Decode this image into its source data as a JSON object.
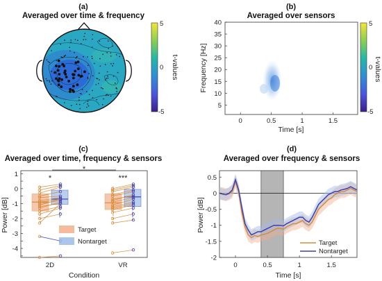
{
  "panels": {
    "a": {
      "letter": "(a)",
      "title": "Averaged over time & frequency",
      "colorbar": {
        "label": "t-values",
        "ticks": [
          "5",
          "0",
          "-5"
        ]
      }
    },
    "b": {
      "letter": "(b)",
      "title": "Averaged over sensors",
      "xlabel": "Time [s]",
      "ylabel": "Frequency [Hz]",
      "xticks": [
        "0",
        "0.5",
        "1",
        "1.5"
      ],
      "yticks": [
        "40",
        "35",
        "30",
        "25",
        "20",
        "15",
        "10",
        "5"
      ],
      "colorbar": {
        "label": "t-values",
        "ticks": [
          "5",
          "0",
          "-5"
        ]
      }
    },
    "c": {
      "letter": "(c)",
      "title": "Averaged over time, frequency & sensors",
      "xlabel": "Condition",
      "ylabel": "Power [dB]",
      "xticks": [
        "2D",
        "VR"
      ],
      "yticks": [
        "1",
        "0.5",
        "0",
        "-0.5",
        "-1",
        "-1.5",
        "-2",
        "-2.5",
        "-3",
        "-3.5",
        "-4",
        "-4.5"
      ],
      "sig": {
        "between": "*",
        "within_2d": "*",
        "within_vr": "***"
      },
      "legend": [
        "Target",
        "Nontarget"
      ]
    },
    "d": {
      "letter": "(d)",
      "title": "Averaged over frequency & sensors",
      "xlabel": "Time [s]",
      "ylabel": "Power [dB]",
      "xticks": [
        "0",
        "0.5",
        "1",
        "1.5"
      ],
      "yticks": [
        "0.5",
        "0",
        "-0.5",
        "-1",
        "-1.5",
        "-2"
      ],
      "legend": [
        "Target",
        "Nontarget"
      ]
    }
  },
  "colors": {
    "target": "#d98b3a",
    "nontarget": "#3a3fb4",
    "target_fill": "#f2b08c",
    "nontarget_fill": "#9dbbe8",
    "highlight": "#b5b5b5"
  },
  "chart_data": [
    {
      "panel": "a",
      "type": "heatmap",
      "title": "Averaged over time & frequency",
      "colorbar_label": "t-values",
      "clim": [
        -5,
        5
      ]
    },
    {
      "panel": "b",
      "type": "heatmap",
      "title": "Averaged over sensors",
      "xlabel": "Time [s]",
      "ylabel": "Frequency [Hz]",
      "xlim": [
        -0.25,
        1.9
      ],
      "ylim": [
        1,
        40
      ],
      "clim": [
        -5,
        5
      ],
      "colorbar_label": "t-values",
      "cluster": {
        "time": [
          0.45,
          0.75
        ],
        "frequency": [
          9,
          26
        ],
        "peak_t": -2.5
      }
    },
    {
      "panel": "c",
      "type": "box",
      "title": "Averaged over time, frequency & sensors",
      "xlabel": "Condition",
      "ylabel": "Power [dB]",
      "categories": [
        "2D",
        "VR"
      ],
      "ylim": [
        -4.6,
        1.2
      ],
      "series": [
        {
          "name": "Target",
          "boxes": [
            {
              "q1": -1.5,
              "median": -0.9,
              "q3": -0.35,
              "low": -2.3,
              "high": 0.15
            },
            {
              "q1": -1.4,
              "median": -0.95,
              "q3": -0.35,
              "low": -2.3,
              "high": 0.15
            }
          ]
        },
        {
          "name": "Nontarget",
          "boxes": [
            {
              "q1": -1.05,
              "median": -0.7,
              "q3": -0.1,
              "low": -2.0,
              "high": 0.3
            },
            {
              "q1": -1.2,
              "median": -0.55,
              "q3": -0.05,
              "low": -2.1,
              "high": 0.3
            }
          ]
        }
      ],
      "pairs_2d": [
        [
          0.1,
          0.3
        ],
        [
          -0.1,
          0.2
        ],
        [
          -0.3,
          0.1
        ],
        [
          -0.5,
          -0.2
        ],
        [
          -0.6,
          -0.5
        ],
        [
          -0.8,
          -0.6
        ],
        [
          -0.9,
          -0.7
        ],
        [
          -1.0,
          -0.8
        ],
        [
          -1.1,
          -0.7
        ],
        [
          -1.2,
          -1.0
        ],
        [
          -1.3,
          -0.9
        ],
        [
          -1.5,
          -1.2
        ],
        [
          -1.7,
          -1.3
        ],
        [
          -2.0,
          -1.7
        ],
        [
          -2.3,
          -1.0
        ],
        [
          -3.2,
          -3.5
        ],
        [
          -4.6,
          -4.5
        ]
      ],
      "pairs_vr": [
        [
          0.0,
          0.3
        ],
        [
          -0.1,
          0.2
        ],
        [
          -0.2,
          0.1
        ],
        [
          -0.4,
          -0.1
        ],
        [
          -0.5,
          -0.2
        ],
        [
          -0.7,
          -0.5
        ],
        [
          -0.8,
          -0.4
        ],
        [
          -0.9,
          -0.6
        ],
        [
          -1.1,
          -0.7
        ],
        [
          -1.2,
          -0.9
        ],
        [
          -1.3,
          -1.0
        ],
        [
          -1.4,
          -1.1
        ],
        [
          -1.6,
          -1.3
        ],
        [
          -2.0,
          -1.7
        ],
        [
          -2.3,
          -2.1
        ],
        [
          -4.3,
          -4.1
        ]
      ]
    },
    {
      "panel": "d",
      "type": "line",
      "title": "Averaged over frequency & sensors",
      "xlabel": "Time [s]",
      "ylabel": "Power [dB]",
      "xlim": [
        -0.25,
        1.9
      ],
      "ylim": [
        -2,
        0.7
      ],
      "highlight": [
        0.4,
        0.75
      ],
      "x": [
        -0.25,
        -0.2,
        -0.15,
        -0.1,
        -0.05,
        0.0,
        0.05,
        0.1,
        0.15,
        0.2,
        0.25,
        0.3,
        0.35,
        0.4,
        0.45,
        0.5,
        0.55,
        0.6,
        0.65,
        0.7,
        0.75,
        0.8,
        0.85,
        0.9,
        0.95,
        1.0,
        1.05,
        1.1,
        1.15,
        1.2,
        1.25,
        1.3,
        1.35,
        1.4,
        1.45,
        1.5,
        1.55,
        1.6,
        1.65,
        1.7,
        1.75,
        1.8,
        1.85,
        1.9
      ],
      "series": [
        {
          "name": "Target",
          "values": [
            0.0,
            -0.02,
            -0.05,
            -0.02,
            0.05,
            0.35,
            0.05,
            -0.6,
            -1.05,
            -1.3,
            -1.38,
            -1.32,
            -1.35,
            -1.3,
            -1.28,
            -1.25,
            -1.2,
            -1.15,
            -1.1,
            -1.1,
            -1.12,
            -1.05,
            -1.0,
            -0.95,
            -0.95,
            -0.9,
            -0.85,
            -0.95,
            -1.0,
            -0.9,
            -0.7,
            -0.5,
            -0.4,
            -0.3,
            -0.2,
            -0.15,
            -0.05,
            0.0,
            0.05,
            0.05,
            0.1,
            0.15,
            0.1,
            0.05
          ],
          "ci": 0.2
        },
        {
          "name": "Nontarget",
          "values": [
            0.0,
            -0.03,
            -0.05,
            0.0,
            0.1,
            0.42,
            0.1,
            -0.45,
            -0.95,
            -1.15,
            -1.3,
            -1.25,
            -1.2,
            -1.2,
            -1.15,
            -1.1,
            -1.05,
            -1.0,
            -1.0,
            -1.0,
            -1.02,
            -0.95,
            -0.9,
            -0.85,
            -0.8,
            -0.75,
            -0.75,
            -0.85,
            -0.9,
            -0.75,
            -0.55,
            -0.35,
            -0.25,
            -0.15,
            -0.05,
            0.0,
            0.05,
            0.05,
            0.1,
            0.12,
            0.15,
            0.2,
            0.15,
            0.1
          ],
          "ci": 0.18
        }
      ]
    }
  ]
}
